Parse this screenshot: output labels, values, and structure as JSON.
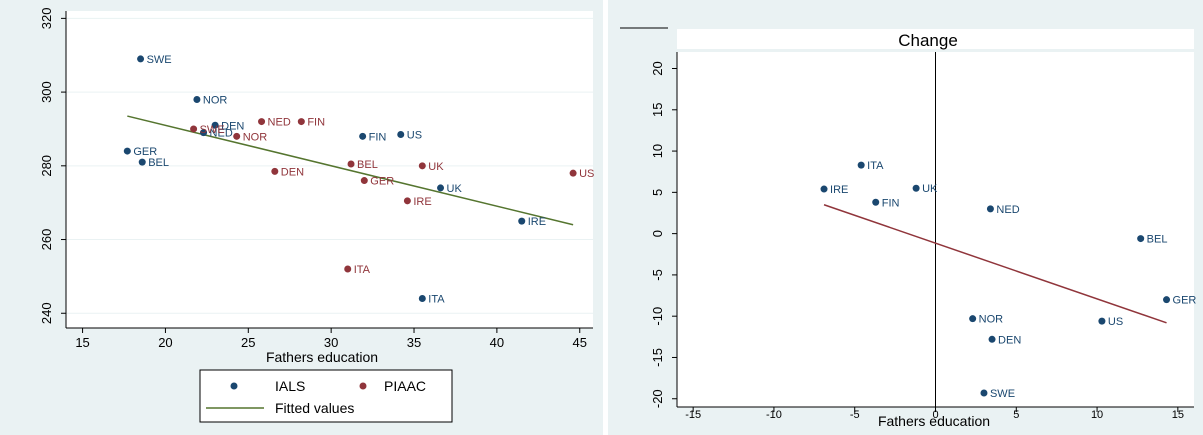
{
  "chart_data": [
    {
      "type": "scatter",
      "title": "",
      "xlabel": "Fathers education",
      "ylabel": "",
      "xlim": [
        14,
        45.8
      ],
      "ylim": [
        236,
        322
      ],
      "xticks": [
        15,
        20,
        25,
        30,
        35,
        40,
        45
      ],
      "yticks": [
        240,
        260,
        280,
        300,
        320
      ],
      "grid": true,
      "legend_position": "bottom",
      "colors": {
        "IALS": "#1a476f",
        "PIAAC": "#90353b",
        "fit": "#55752f"
      },
      "series": [
        {
          "name": "IALS",
          "points": [
            {
              "label": "SWE",
              "x": 18.5,
              "y": 309
            },
            {
              "label": "NOR",
              "x": 21.9,
              "y": 298
            },
            {
              "label": "DEN",
              "x": 23.0,
              "y": 291
            },
            {
              "label": "NED",
              "x": 22.3,
              "y": 289
            },
            {
              "label": "GER",
              "x": 17.7,
              "y": 284
            },
            {
              "label": "BEL",
              "x": 18.6,
              "y": 281
            },
            {
              "label": "FIN",
              "x": 31.9,
              "y": 288
            },
            {
              "label": "US",
              "x": 34.2,
              "y": 288.5
            },
            {
              "label": "UK",
              "x": 36.6,
              "y": 274
            },
            {
              "label": "IRE",
              "x": 41.5,
              "y": 265
            },
            {
              "label": "ITA",
              "x": 35.5,
              "y": 244
            }
          ]
        },
        {
          "name": "PIAAC",
          "points": [
            {
              "label": "SWE",
              "x": 21.7,
              "y": 290
            },
            {
              "label": "NED",
              "x": 25.8,
              "y": 292
            },
            {
              "label": "FIN",
              "x": 28.2,
              "y": 292
            },
            {
              "label": "NOR",
              "x": 24.3,
              "y": 288
            },
            {
              "label": "DEN",
              "x": 26.6,
              "y": 278.5
            },
            {
              "label": "BEL",
              "x": 31.2,
              "y": 280.5
            },
            {
              "label": "GER",
              "x": 32.0,
              "y": 276
            },
            {
              "label": "UK",
              "x": 35.5,
              "y": 280
            },
            {
              "label": "IRE",
              "x": 34.6,
              "y": 270.5
            },
            {
              "label": "US",
              "x": 44.6,
              "y": 278
            },
            {
              "label": "ITA",
              "x": 31.0,
              "y": 252
            }
          ]
        },
        {
          "name": "Fitted values",
          "line": [
            [
              17.7,
              293.5
            ],
            [
              44.6,
              264
            ]
          ]
        }
      ],
      "legend": {
        "items": [
          "IALS",
          "PIAAC",
          "Fitted values"
        ]
      }
    },
    {
      "type": "scatter",
      "title": "Change",
      "xlabel": "Fathers education",
      "ylabel": "",
      "xlim": [
        -16,
        16
      ],
      "ylim": [
        -21,
        22
      ],
      "xticks": [
        -15,
        -10,
        -5,
        0,
        5,
        10,
        15
      ],
      "yticks": [
        -20,
        -15,
        -10,
        -5,
        0,
        5,
        10,
        15,
        20
      ],
      "grid": false,
      "vline": 0,
      "colors": {
        "points": "#1a476f",
        "fit": "#90353b",
        "vline": "#000000"
      },
      "series": [
        {
          "name": "",
          "points": [
            {
              "label": "ITA",
              "x": -4.6,
              "y": 8.3
            },
            {
              "label": "IRE",
              "x": -6.9,
              "y": 5.4
            },
            {
              "label": "UK",
              "x": -1.2,
              "y": 5.5
            },
            {
              "label": "FIN",
              "x": -3.7,
              "y": 3.8
            },
            {
              "label": "NED",
              "x": 3.4,
              "y": 3.0
            },
            {
              "label": "BEL",
              "x": 12.7,
              "y": -0.6
            },
            {
              "label": "GER",
              "x": 14.3,
              "y": -8.0
            },
            {
              "label": "NOR",
              "x": 2.3,
              "y": -10.3
            },
            {
              "label": "US",
              "x": 10.3,
              "y": -10.6
            },
            {
              "label": "DEN",
              "x": 3.5,
              "y": -12.8
            },
            {
              "label": "SWE",
              "x": 3.0,
              "y": -19.3
            }
          ]
        },
        {
          "name": "",
          "line": [
            [
              -6.9,
              3.5
            ],
            [
              14.3,
              -10.8
            ]
          ]
        }
      ]
    }
  ]
}
